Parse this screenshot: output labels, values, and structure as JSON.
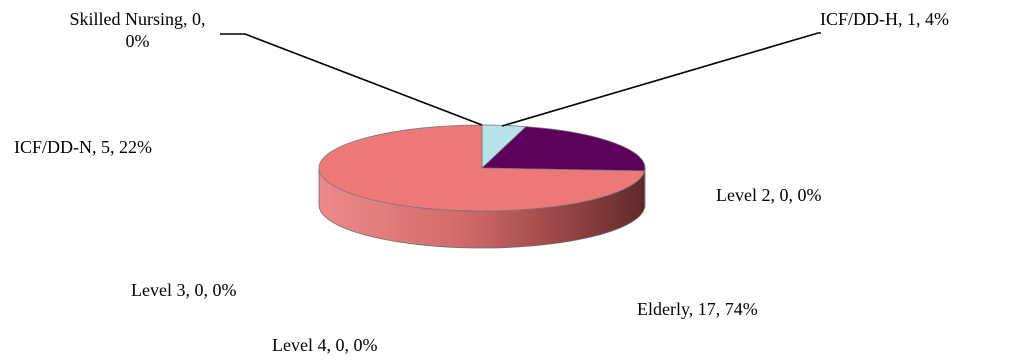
{
  "chart_data": {
    "type": "pie",
    "style": "3d",
    "title": "",
    "slices": [
      {
        "label": "Skilled Nursing",
        "value": 0,
        "percent": "0%",
        "display": "Skilled Nursing, 0,\n0%",
        "color": "#8db3e2"
      },
      {
        "label": "ICF/DD-H",
        "value": 1,
        "percent": "4%",
        "display": "ICF/DD-H, 1, 4%",
        "color": "#b7e3ea"
      },
      {
        "label": "ICF/DD-N",
        "value": 5,
        "percent": "22%",
        "display": "ICF/DD-N, 5, 22%",
        "color": "#5c005c"
      },
      {
        "label": "Level 2",
        "value": 0,
        "percent": "0%",
        "display": "Level 2, 0, 0%",
        "color": "#8b6aa1"
      },
      {
        "label": "Elderly",
        "value": 17,
        "percent": "74%",
        "display": "Elderly, 17, 74%",
        "color": "#ed7878"
      },
      {
        "label": "Level 4",
        "value": 0,
        "percent": "0%",
        "display": "Level 4, 0, 0%",
        "color": "#6fa8dc"
      },
      {
        "label": "Level 3",
        "value": 0,
        "percent": "0%",
        "display": "Level 3, 0, 0%",
        "color": "#8fbc8f"
      }
    ]
  }
}
